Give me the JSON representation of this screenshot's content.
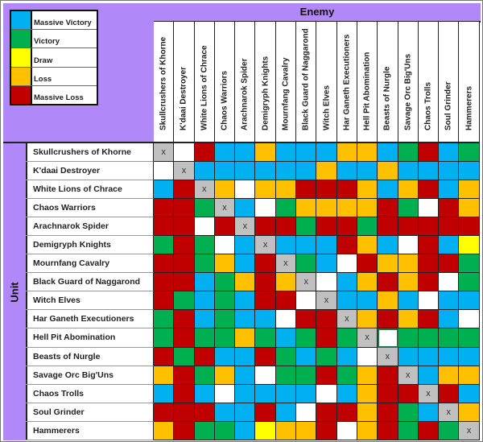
{
  "legend": {
    "items": [
      {
        "key": "B",
        "label": "Massive Victory",
        "color": "#00b0f0"
      },
      {
        "key": "G",
        "label": "Victory",
        "color": "#00b050"
      },
      {
        "key": "Y",
        "label": "Draw",
        "color": "#ffff00"
      },
      {
        "key": "O",
        "label": "Loss",
        "color": "#ffc000"
      },
      {
        "key": "R",
        "label": "Massive Loss",
        "color": "#c00000"
      }
    ]
  },
  "header": {
    "enemy_label": "Enemy",
    "unit_label": "Unit"
  },
  "units": [
    "Skullcrushers of Khorne",
    "K'daai Destroyer",
    "White Lions of Chrace",
    "Chaos Warriors",
    "Arachnarok Spider",
    "Demigryph Knights",
    "Mournfang Cavalry",
    "Black Guard of Naggarond",
    "Witch Elves",
    "Har Ganeth Executioners",
    "Hell Pit Abomination",
    "Beasts of Nurgle",
    "Savage Orc Big'Uns",
    "Chaos Trolls",
    "Soul Grinder",
    "Hammerers"
  ],
  "self_marker": "x",
  "selected_cell": {
    "row": 10,
    "col": 11
  },
  "chart_data": {
    "type": "heatmap",
    "title": "",
    "xlabel": "Enemy",
    "ylabel": "Unit",
    "legend": {
      "B": "Massive Victory",
      "G": "Victory",
      "Y": "Draw",
      "O": "Loss",
      "R": "Massive Loss",
      "W": "(blank)",
      "X": "self (x)"
    },
    "x": [
      "Skullcrushers of Khorne",
      "K'daai Destroyer",
      "White Lions of Chrace",
      "Chaos Warriors",
      "Arachnarok Spider",
      "Demigryph Knights",
      "Mournfang Cavalry",
      "Black Guard of Naggarond",
      "Witch Elves",
      "Har Ganeth Executioners",
      "Hell Pit Abomination",
      "Beasts of Nurgle",
      "Savage Orc Big'Uns",
      "Chaos Trolls",
      "Soul Grinder",
      "Hammerers"
    ],
    "y": [
      "Skullcrushers of Khorne",
      "K'daai Destroyer",
      "White Lions of Chrace",
      "Chaos Warriors",
      "Arachnarok Spider",
      "Demigryph Knights",
      "Mournfang Cavalry",
      "Black Guard of Naggarond",
      "Witch Elves",
      "Har Ganeth Executioners",
      "Hell Pit Abomination",
      "Beasts of Nurgle",
      "Savage Orc Big'Uns",
      "Chaos Trolls",
      "Soul Grinder",
      "Hammerers"
    ],
    "values": [
      [
        "X",
        "W",
        "R",
        "B",
        "B",
        "O",
        "B",
        "B",
        "B",
        "O",
        "O",
        "B",
        "G",
        "R",
        "B",
        "G"
      ],
      [
        "W",
        "X",
        "B",
        "B",
        "B",
        "B",
        "B",
        "B",
        "O",
        "B",
        "B",
        "O",
        "B",
        "B",
        "B",
        "B"
      ],
      [
        "B",
        "R",
        "X",
        "O",
        "W",
        "O",
        "O",
        "R",
        "R",
        "R",
        "O",
        "B",
        "O",
        "R",
        "B",
        "O"
      ],
      [
        "R",
        "R",
        "G",
        "X",
        "B",
        "W",
        "G",
        "O",
        "O",
        "O",
        "O",
        "R",
        "G",
        "W",
        "R",
        "O"
      ],
      [
        "R",
        "R",
        "W",
        "R",
        "X",
        "R",
        "R",
        "G",
        "R",
        "R",
        "G",
        "R",
        "R",
        "R",
        "R",
        "R"
      ],
      [
        "G",
        "R",
        "G",
        "W",
        "B",
        "X",
        "B",
        "B",
        "B",
        "R",
        "O",
        "B",
        "W",
        "R",
        "B",
        "Y"
      ],
      [
        "R",
        "R",
        "G",
        "O",
        "B",
        "R",
        "X",
        "G",
        "B",
        "W",
        "R",
        "O",
        "O",
        "R",
        "R",
        "G"
      ],
      [
        "R",
        "R",
        "B",
        "G",
        "O",
        "R",
        "O",
        "X",
        "W",
        "B",
        "O",
        "R",
        "O",
        "R",
        "W",
        "G"
      ],
      [
        "R",
        "G",
        "B",
        "G",
        "B",
        "R",
        "R",
        "W",
        "X",
        "B",
        "B",
        "O",
        "B",
        "W",
        "B",
        "B"
      ],
      [
        "G",
        "R",
        "B",
        "G",
        "B",
        "B",
        "W",
        "R",
        "R",
        "X",
        "O",
        "R",
        "O",
        "R",
        "B",
        "W"
      ],
      [
        "G",
        "R",
        "G",
        "G",
        "O",
        "G",
        "B",
        "G",
        "R",
        "G",
        "X",
        "W",
        "G",
        "G",
        "G",
        "G"
      ],
      [
        "R",
        "G",
        "R",
        "B",
        "B",
        "R",
        "G",
        "B",
        "G",
        "B",
        "W",
        "X",
        "B",
        "B",
        "B",
        "B"
      ],
      [
        "O",
        "R",
        "G",
        "O",
        "B",
        "W",
        "G",
        "G",
        "R",
        "G",
        "O",
        "R",
        "X",
        "B",
        "O",
        "O"
      ],
      [
        "B",
        "R",
        "B",
        "W",
        "B",
        "B",
        "B",
        "B",
        "W",
        "B",
        "O",
        "R",
        "R",
        "X",
        "R",
        "B"
      ],
      [
        "R",
        "R",
        "R",
        "B",
        "B",
        "R",
        "B",
        "W",
        "R",
        "R",
        "O",
        "R",
        "G",
        "B",
        "X",
        "O"
      ],
      [
        "O",
        "R",
        "G",
        "G",
        "B",
        "Y",
        "O",
        "O",
        "R",
        "W",
        "O",
        "R",
        "G",
        "R",
        "G",
        "X"
      ]
    ]
  }
}
